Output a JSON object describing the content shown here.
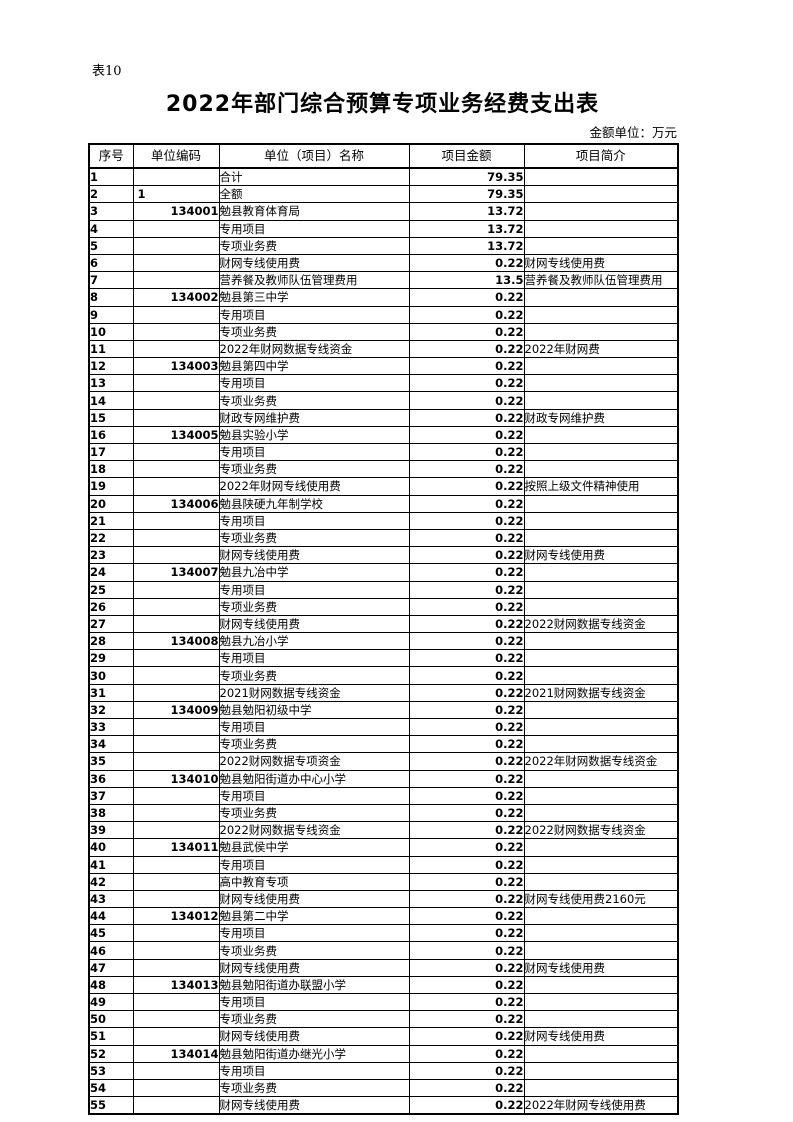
{
  "page": {
    "sheet_label": "表10",
    "title": "2022年部门综合预算专项业务经费支出表",
    "unit_note": "金额单位：万元"
  },
  "table": {
    "columns": [
      "序号",
      "单位编码",
      "单位（项目）名称",
      "项目金额",
      "项目简介"
    ],
    "rows": [
      {
        "seq": "1",
        "code": "",
        "name": "合计",
        "amount": "79.35",
        "note": ""
      },
      {
        "seq": "2",
        "code": "1",
        "name": "全额",
        "amount": "79.35",
        "note": ""
      },
      {
        "seq": "3",
        "code": "134001",
        "name": "勉县教育体育局",
        "amount": "13.72",
        "note": ""
      },
      {
        "seq": "4",
        "code": "",
        "name": "专用项目",
        "amount": "13.72",
        "note": ""
      },
      {
        "seq": "5",
        "code": "",
        "name": "专项业务费",
        "amount": "13.72",
        "note": ""
      },
      {
        "seq": "6",
        "code": "",
        "name": "财网专线使用费",
        "amount": "0.22",
        "note": "财网专线使用费"
      },
      {
        "seq": "7",
        "code": "",
        "name": "营养餐及教师队伍管理费用",
        "amount": "13.5",
        "note": "营养餐及教师队伍管理费用"
      },
      {
        "seq": "8",
        "code": "134002",
        "name": "勉县第三中学",
        "amount": "0.22",
        "note": ""
      },
      {
        "seq": "9",
        "code": "",
        "name": "专用项目",
        "amount": "0.22",
        "note": ""
      },
      {
        "seq": "10",
        "code": "",
        "name": "专项业务费",
        "amount": "0.22",
        "note": ""
      },
      {
        "seq": "11",
        "code": "",
        "name": "2022年财网数据专线资金",
        "amount": "0.22",
        "note": "2022年财网费"
      },
      {
        "seq": "12",
        "code": "134003",
        "name": "勉县第四中学",
        "amount": "0.22",
        "note": ""
      },
      {
        "seq": "13",
        "code": "",
        "name": "专用项目",
        "amount": "0.22",
        "note": ""
      },
      {
        "seq": "14",
        "code": "",
        "name": "专项业务费",
        "amount": "0.22",
        "note": ""
      },
      {
        "seq": "15",
        "code": "",
        "name": "财政专网维护费",
        "amount": "0.22",
        "note": "财政专网维护费"
      },
      {
        "seq": "16",
        "code": "134005",
        "name": "勉县实验小学",
        "amount": "0.22",
        "note": ""
      },
      {
        "seq": "17",
        "code": "",
        "name": "专用项目",
        "amount": "0.22",
        "note": ""
      },
      {
        "seq": "18",
        "code": "",
        "name": "专项业务费",
        "amount": "0.22",
        "note": ""
      },
      {
        "seq": "19",
        "code": "",
        "name": "2022年财网专线使用费",
        "amount": "0.22",
        "note": "按照上级文件精神使用"
      },
      {
        "seq": "20",
        "code": "134006",
        "name": "勉县陕硬九年制学校",
        "amount": "0.22",
        "note": ""
      },
      {
        "seq": "21",
        "code": "",
        "name": "专用项目",
        "amount": "0.22",
        "note": ""
      },
      {
        "seq": "22",
        "code": "",
        "name": "专项业务费",
        "amount": "0.22",
        "note": ""
      },
      {
        "seq": "23",
        "code": "",
        "name": "财网专线使用费",
        "amount": "0.22",
        "note": "财网专线使用费"
      },
      {
        "seq": "24",
        "code": "134007",
        "name": "勉县九冶中学",
        "amount": "0.22",
        "note": ""
      },
      {
        "seq": "25",
        "code": "",
        "name": "专用项目",
        "amount": "0.22",
        "note": ""
      },
      {
        "seq": "26",
        "code": "",
        "name": "专项业务费",
        "amount": "0.22",
        "note": ""
      },
      {
        "seq": "27",
        "code": "",
        "name": "财网专线使用费",
        "amount": "0.22",
        "note": "2022财网数据专线资金"
      },
      {
        "seq": "28",
        "code": "134008",
        "name": "勉县九冶小学",
        "amount": "0.22",
        "note": ""
      },
      {
        "seq": "29",
        "code": "",
        "name": "专用项目",
        "amount": "0.22",
        "note": ""
      },
      {
        "seq": "30",
        "code": "",
        "name": "专项业务费",
        "amount": "0.22",
        "note": ""
      },
      {
        "seq": "31",
        "code": "",
        "name": "2021财网数据专线资金",
        "amount": "0.22",
        "note": "2021财网数据专线资金"
      },
      {
        "seq": "32",
        "code": "134009",
        "name": "勉县勉阳初级中学",
        "amount": "0.22",
        "note": ""
      },
      {
        "seq": "33",
        "code": "",
        "name": "专用项目",
        "amount": "0.22",
        "note": ""
      },
      {
        "seq": "34",
        "code": "",
        "name": "专项业务费",
        "amount": "0.22",
        "note": ""
      },
      {
        "seq": "35",
        "code": "",
        "name": "2022财网数据专项资金",
        "amount": "0.22",
        "note": "2022年财网数据专线资金"
      },
      {
        "seq": "36",
        "code": "134010",
        "name": "勉县勉阳街道办中心小学",
        "amount": "0.22",
        "note": ""
      },
      {
        "seq": "37",
        "code": "",
        "name": "专用项目",
        "amount": "0.22",
        "note": ""
      },
      {
        "seq": "38",
        "code": "",
        "name": "专项业务费",
        "amount": "0.22",
        "note": ""
      },
      {
        "seq": "39",
        "code": "",
        "name": "2022财网数据专线资金",
        "amount": "0.22",
        "note": "2022财网数据专线资金"
      },
      {
        "seq": "40",
        "code": "134011",
        "name": "勉县武侯中学",
        "amount": "0.22",
        "note": ""
      },
      {
        "seq": "41",
        "code": "",
        "name": "专用项目",
        "amount": "0.22",
        "note": ""
      },
      {
        "seq": "42",
        "code": "",
        "name": "高中教育专项",
        "amount": "0.22",
        "note": ""
      },
      {
        "seq": "43",
        "code": "",
        "name": "财网专线使用费",
        "amount": "0.22",
        "note": "财网专线使用费2160元"
      },
      {
        "seq": "44",
        "code": "134012",
        "name": "勉县第二中学",
        "amount": "0.22",
        "note": ""
      },
      {
        "seq": "45",
        "code": "",
        "name": "专用项目",
        "amount": "0.22",
        "note": ""
      },
      {
        "seq": "46",
        "code": "",
        "name": "专项业务费",
        "amount": "0.22",
        "note": ""
      },
      {
        "seq": "47",
        "code": "",
        "name": "财网专线使用费",
        "amount": "0.22",
        "note": "财网专线使用费"
      },
      {
        "seq": "48",
        "code": "134013",
        "name": "勉县勉阳街道办联盟小学",
        "amount": "0.22",
        "note": ""
      },
      {
        "seq": "49",
        "code": "",
        "name": "专用项目",
        "amount": "0.22",
        "note": ""
      },
      {
        "seq": "50",
        "code": "",
        "name": "专项业务费",
        "amount": "0.22",
        "note": ""
      },
      {
        "seq": "51",
        "code": "",
        "name": "财网专线使用费",
        "amount": "0.22",
        "note": "财网专线使用费"
      },
      {
        "seq": "52",
        "code": "134014",
        "name": "勉县勉阳街道办继光小学",
        "amount": "0.22",
        "note": ""
      },
      {
        "seq": "53",
        "code": "",
        "name": "专用项目",
        "amount": "0.22",
        "note": ""
      },
      {
        "seq": "54",
        "code": "",
        "name": "专项业务费",
        "amount": "0.22",
        "note": ""
      },
      {
        "seq": "55",
        "code": "",
        "name": "财网专线使用费",
        "amount": "0.22",
        "note": "2022年财网专线使用费"
      }
    ]
  }
}
